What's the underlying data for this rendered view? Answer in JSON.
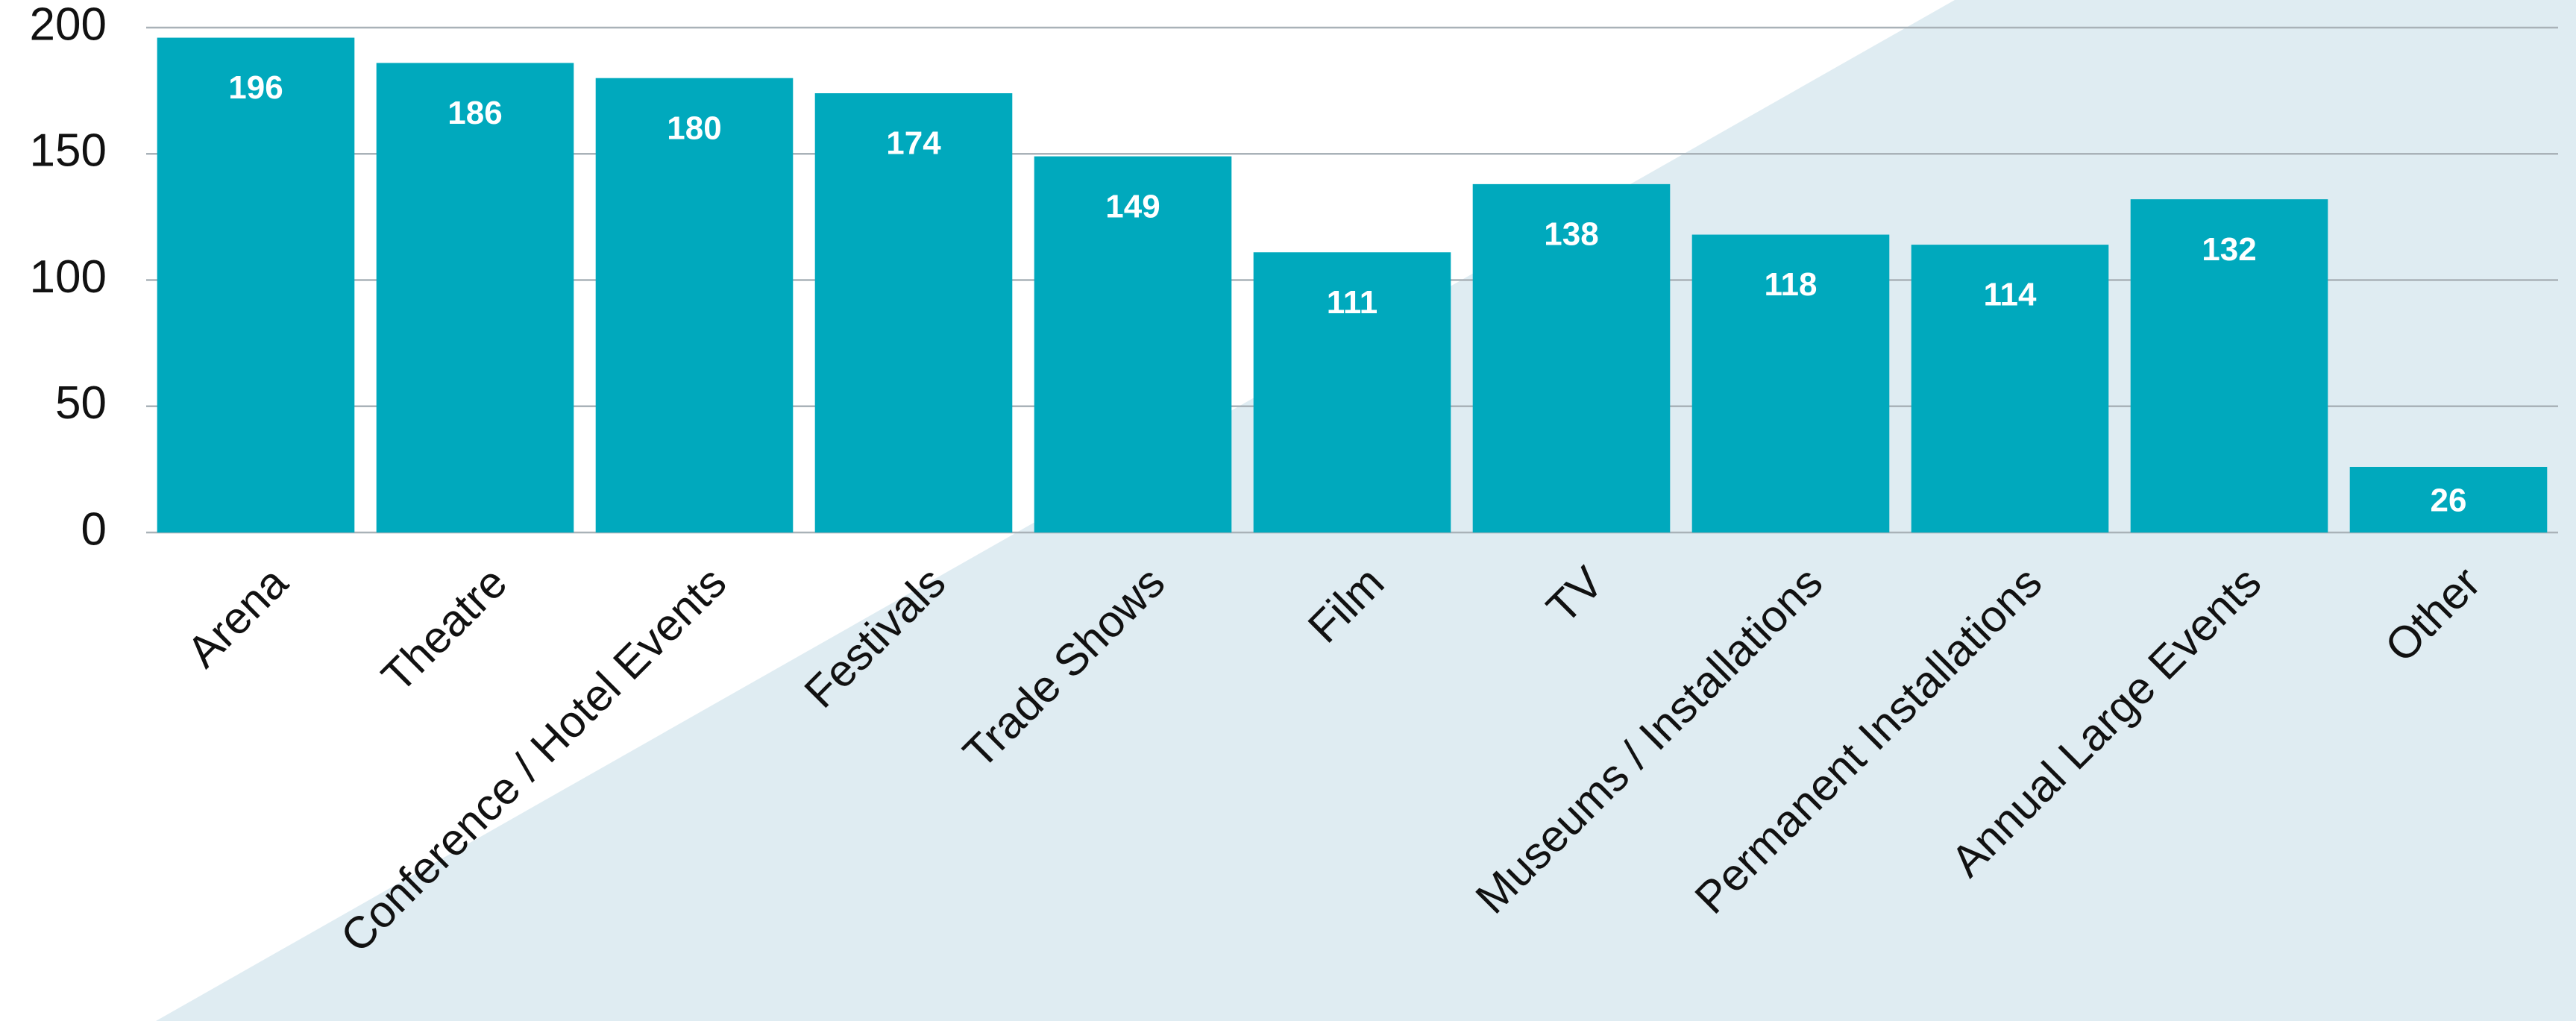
{
  "chart_data": {
    "type": "bar",
    "categories": [
      "Arena",
      "Theatre",
      "Conference / Hotel Events",
      "Festivals",
      "Trade Shows",
      "Film",
      "TV",
      "Museums / Installations",
      "Permanent Installations",
      "Annual Large Events",
      "Other"
    ],
    "values": [
      196,
      186,
      180,
      174,
      149,
      111,
      138,
      118,
      114,
      132,
      26
    ],
    "color": "#00a9bd",
    "ylim": [
      0,
      200
    ],
    "yticks": [
      0,
      50,
      100,
      150,
      200
    ],
    "grid": true
  }
}
